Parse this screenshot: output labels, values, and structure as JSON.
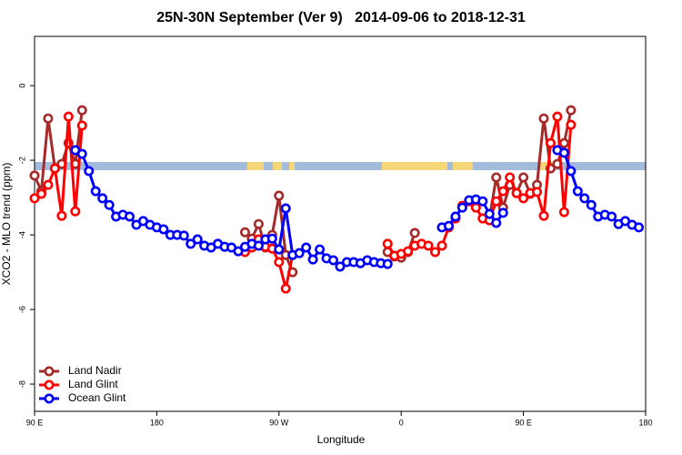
{
  "chart_data": {
    "type": "line",
    "title": "25N-30N September (Ver 9)   2014-09-06 to 2018-12-31",
    "x_label": "Longitude",
    "y_label": "XCO2 - MLO trend (ppm)",
    "x": [
      90,
      95,
      100,
      105,
      110,
      115,
      120,
      125,
      130,
      135,
      140,
      145,
      150,
      155,
      160,
      165,
      170,
      175,
      180,
      185,
      190,
      195,
      200,
      205,
      210,
      215,
      220,
      225,
      230,
      235,
      240,
      245,
      250,
      255,
      260,
      265,
      270,
      275,
      280,
      285,
      290,
      295,
      300,
      305,
      310,
      315,
      320,
      325,
      330,
      335,
      340,
      345,
      350,
      355,
      360,
      365,
      370,
      375,
      380,
      385,
      390,
      395,
      400,
      405,
      410,
      415,
      420,
      425,
      430,
      435,
      440,
      445,
      450,
      455,
      460,
      465,
      470,
      475,
      480,
      485,
      490,
      495,
      500,
      505,
      510,
      515,
      520,
      525,
      530,
      535
    ],
    "xlim": [
      90,
      540
    ],
    "xticks": [
      {
        "value": 90,
        "label": "90 E"
      },
      180,
      {
        "value": 270,
        "label": "90 W"
      },
      0,
      {
        "value": 450,
        "label": "90 E"
      },
      {
        "value": 540,
        "label": "180"
      }
    ],
    "ylim": [
      -8.73,
      1.32
    ],
    "yticks": [
      0,
      -2,
      -4,
      -6,
      -8
    ],
    "legend": "bottomleft",
    "series": [
      {
        "name": "Land Nadir",
        "color": "#a52a2a",
        "values": [
          -2.41,
          -2.83,
          -0.88,
          -2.22,
          -2.1,
          -1.54,
          -2.1,
          -0.66,
          null,
          null,
          null,
          null,
          null,
          null,
          null,
          null,
          null,
          null,
          null,
          null,
          null,
          null,
          null,
          null,
          null,
          null,
          null,
          null,
          null,
          null,
          null,
          -3.93,
          -4.1,
          -3.71,
          -4.34,
          -4.0,
          -2.95,
          -4.54,
          -5.0,
          null,
          null,
          null,
          null,
          null,
          null,
          null,
          null,
          null,
          null,
          null,
          null,
          null,
          -4.46,
          -4.58,
          -4.61,
          -4.46,
          -3.95,
          null,
          null,
          null,
          null,
          null,
          null,
          null,
          null,
          null,
          null,
          -3.56,
          -2.46,
          -3.27,
          -2.66,
          -2.88,
          -2.46,
          -2.9,
          -2.66,
          -0.88,
          -2.22,
          -2.1,
          -1.54,
          -0.66,
          null,
          null,
          null,
          null,
          null,
          null,
          null,
          null,
          null,
          null
        ]
      },
      {
        "name": "Land Glint",
        "color": "#ff0000",
        "values": [
          -3.02,
          -2.9,
          -2.66,
          -2.22,
          -3.49,
          -0.83,
          -3.37,
          -1.07,
          null,
          null,
          null,
          null,
          null,
          null,
          null,
          null,
          null,
          null,
          null,
          null,
          null,
          null,
          null,
          null,
          null,
          null,
          null,
          null,
          null,
          null,
          null,
          -4.46,
          -4.34,
          -4.12,
          -4.32,
          -4.37,
          -4.73,
          -5.44,
          -4.54,
          null,
          null,
          null,
          null,
          null,
          null,
          null,
          null,
          null,
          null,
          null,
          null,
          null,
          -4.24,
          -4.56,
          -4.51,
          -4.44,
          -4.29,
          -4.24,
          -4.29,
          -4.46,
          -4.29,
          -3.8,
          -3.56,
          -3.22,
          -3.1,
          -3.27,
          -3.56,
          -3.61,
          -3.1,
          -2.83,
          -2.46,
          -2.88,
          -3.02,
          -2.88,
          -2.85,
          -3.49,
          -1.54,
          -0.83,
          -3.39,
          -1.05,
          null,
          null,
          null,
          null,
          null,
          null,
          null,
          null,
          null,
          null
        ]
      },
      {
        "name": "Ocean Glint",
        "color": "#0000ff",
        "values": [
          null,
          null,
          null,
          null,
          null,
          null,
          -1.73,
          -1.83,
          -2.29,
          -2.83,
          -3.02,
          -3.2,
          -3.51,
          -3.46,
          -3.51,
          -3.73,
          -3.63,
          -3.73,
          -3.8,
          -3.85,
          -4.0,
          -4.0,
          -4.02,
          -4.24,
          -4.12,
          -4.29,
          -4.34,
          -4.24,
          -4.32,
          -4.34,
          -4.44,
          -4.32,
          -4.24,
          -4.29,
          -4.12,
          -4.1,
          -4.39,
          -3.29,
          -4.54,
          -4.49,
          -4.34,
          -4.66,
          -4.39,
          -4.63,
          -4.68,
          -4.85,
          -4.73,
          -4.73,
          -4.76,
          -4.68,
          -4.73,
          -4.76,
          -4.78,
          null,
          null,
          null,
          null,
          null,
          null,
          null,
          -3.8,
          -3.76,
          -3.51,
          -3.27,
          -3.07,
          -3.05,
          -3.1,
          -3.44,
          -3.68,
          -3.41,
          null,
          null,
          null,
          null,
          null,
          null,
          null,
          -1.73,
          -1.8,
          -2.29,
          -2.83,
          -3.02,
          -3.2,
          -3.51,
          -3.46,
          -3.51,
          -3.71,
          -3.63,
          -3.73,
          -3.8
        ]
      }
    ]
  }
}
